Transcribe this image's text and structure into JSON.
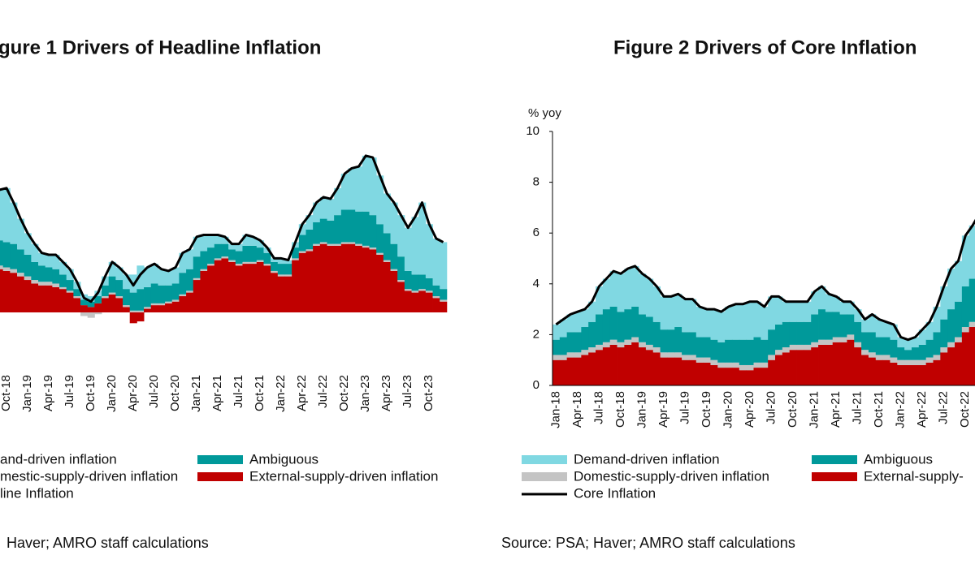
{
  "chart_data": [
    {
      "type": "bar",
      "stacked": true,
      "title": "gure 1 Drivers of Headline Inflation",
      "source": "Haver; AMRO staff calculations",
      "ylim": [
        -2,
        10
      ],
      "categories": [
        null,
        "Oct-18",
        null,
        null,
        "Jan-19",
        null,
        null,
        "Apr-19",
        null,
        null,
        "Jul-19",
        null,
        null,
        "Oct-19",
        null,
        null,
        "Jan-20",
        null,
        null,
        "Apr-20",
        null,
        null,
        "Jul-20",
        null,
        null,
        "Oct-20",
        null,
        null,
        "Jan-21",
        null,
        null,
        "Apr-21",
        null,
        null,
        "Jul-21",
        null,
        null,
        "Oct-21",
        null,
        null,
        "Jan-22",
        null,
        null,
        "Apr-22",
        null,
        null,
        "Jul-22",
        null,
        null,
        "Oct-22",
        null,
        null,
        "Jan-23",
        null,
        null,
        "Apr-23",
        null,
        null,
        "Jul-23",
        null,
        null,
        "Oct-23",
        null,
        null
      ],
      "series": [
        {
          "name": "and-driven inflation",
          "color": "#80d8e2",
          "values": [
            2.8,
            3.0,
            2.3,
            1.7,
            1.2,
            1.0,
            0.7,
            0.7,
            0.8,
            0.7,
            0.6,
            0.4,
            0.3,
            0.3,
            0.3,
            0.5,
            0.8,
            0.7,
            0.8,
            1.0,
            1.3,
            1.1,
            1.1,
            0.9,
            0.8,
            0.9,
            1.1,
            1.1,
            1.1,
            0.9,
            0.7,
            0.5,
            0.4,
            0.3,
            0.4,
            0.6,
            0.5,
            0.4,
            0.3,
            0.2,
            0.3,
            0.2,
            0.3,
            0.6,
            0.8,
            1.1,
            1.2,
            1.2,
            1.5,
            2.0,
            2.3,
            2.5,
            3.1,
            3.2,
            2.7,
            2.2,
            2.3,
            2.3,
            2.4,
            3.2,
            4.0,
            3.0,
            2.6,
            2.6
          ]
        },
        {
          "name": "Ambiguous",
          "color": "#00999a",
          "values": [
            1.4,
            1.4,
            1.4,
            1.3,
            1.2,
            1.0,
            0.9,
            0.8,
            0.8,
            0.7,
            0.6,
            0.4,
            0.3,
            0.3,
            0.4,
            0.6,
            0.9,
            0.9,
            0.9,
            1.0,
            1.2,
            1.1,
            1.1,
            1.0,
            0.9,
            0.9,
            1.2,
            1.2,
            1.2,
            1.0,
            0.9,
            0.8,
            0.7,
            0.6,
            0.7,
            0.9,
            0.9,
            0.7,
            0.6,
            0.5,
            0.6,
            0.6,
            0.6,
            0.9,
            1.1,
            1.2,
            1.3,
            1.3,
            1.6,
            1.8,
            1.8,
            1.8,
            1.9,
            1.8,
            1.6,
            1.5,
            1.4,
            1.3,
            1.0,
            0.9,
            0.8,
            0.7,
            0.6,
            0.6
          ]
        },
        {
          "name": "mestic-supply-driven inflation",
          "color": "#c4c4c4",
          "values": [
            0.2,
            0.2,
            0.2,
            0.2,
            0.2,
            0.2,
            0.2,
            0.2,
            0.2,
            0.1,
            0.1,
            0.1,
            -0.2,
            -0.3,
            -0.1,
            0.1,
            0.1,
            0.1,
            0.1,
            0.1,
            0.1,
            0.1,
            0.1,
            0.1,
            0.1,
            0.1,
            0.1,
            0.1,
            0.1,
            0.1,
            0.1,
            0.1,
            0.1,
            0.1,
            0.1,
            0.1,
            0.1,
            0.1,
            0.1,
            0.1,
            0.1,
            0.1,
            0.1,
            0.1,
            0.1,
            0.1,
            0.1,
            0.1,
            0.1,
            0.1,
            0.1,
            0.1,
            0.1,
            0.1,
            0.1,
            0.1,
            0.1,
            0.1,
            0.1,
            0.1,
            0.1,
            0.1,
            0.1,
            0.1
          ]
        },
        {
          "name": "External-supply-driven inflation",
          "color": "#c00000",
          "values": [
            2.4,
            2.3,
            2.2,
            2.0,
            1.8,
            1.6,
            1.5,
            1.5,
            1.4,
            1.3,
            1.1,
            0.8,
            0.4,
            0.3,
            0.5,
            0.8,
            1.0,
            0.8,
            0.3,
            -0.6,
            -0.5,
            0.2,
            0.4,
            0.4,
            0.5,
            0.6,
            0.9,
            1.1,
            1.8,
            2.3,
            2.6,
            2.9,
            3.0,
            2.8,
            2.6,
            2.7,
            2.7,
            2.8,
            2.6,
            2.2,
            2.0,
            2.0,
            2.9,
            3.3,
            3.4,
            3.7,
            3.8,
            3.7,
            3.7,
            3.8,
            3.8,
            3.7,
            3.6,
            3.5,
            3.2,
            2.8,
            2.3,
            1.7,
            1.2,
            1.1,
            1.2,
            1.1,
            0.8,
            0.6
          ]
        },
        {
          "name": "line Inflation",
          "type": "line",
          "color": "#000000",
          "values": [
            6.8,
            6.9,
            6.1,
            5.2,
            4.4,
            3.8,
            3.3,
            3.2,
            3.2,
            2.8,
            2.4,
            1.7,
            0.8,
            0.6,
            1.1,
            2.0,
            2.8,
            2.5,
            2.1,
            1.5,
            2.1,
            2.5,
            2.7,
            2.4,
            2.3,
            2.5,
            3.3,
            3.5,
            4.2,
            4.3,
            4.3,
            4.3,
            4.2,
            3.8,
            3.8,
            4.3,
            4.2,
            4.0,
            3.6,
            3.0,
            3.0,
            2.9,
            3.9,
            4.9,
            5.4,
            6.1,
            6.4,
            6.3,
            6.9,
            7.7,
            8.0,
            8.1,
            8.7,
            8.6,
            7.6,
            6.6,
            6.1,
            5.4,
            4.7,
            5.3,
            6.1,
            4.9,
            4.1,
            3.9
          ]
        }
      ]
    },
    {
      "type": "bar",
      "stacked": true,
      "title": "Figure 2 Drivers of Core Inflation",
      "source": "Source: PSA; Haver; AMRO staff calculations",
      "ylabel": "% yoy",
      "ylim": [
        0,
        10
      ],
      "yticks": [
        0,
        2,
        4,
        6,
        8,
        10
      ],
      "categories": [
        "Jan-18",
        null,
        null,
        "Apr-18",
        null,
        null,
        "Jul-18",
        null,
        null,
        "Oct-18",
        null,
        null,
        "Jan-19",
        null,
        null,
        "Apr-19",
        null,
        null,
        "Jul-19",
        null,
        null,
        "Oct-19",
        null,
        null,
        "Jan-20",
        null,
        null,
        "Apr-20",
        null,
        null,
        "Jul-20",
        null,
        null,
        "Oct-20",
        null,
        null,
        "Jan-21",
        null,
        null,
        "Apr-21",
        null,
        null,
        "Jul-21",
        null,
        null,
        "Oct-21",
        null,
        null,
        "Jan-22",
        null,
        null,
        "Apr-22",
        null,
        null,
        "Jul-22",
        null,
        null,
        "Oct-22",
        null,
        null
      ],
      "series": [
        {
          "name": "Demand-driven inflation",
          "color": "#80d8e2",
          "values": [
            0.6,
            0.7,
            0.7,
            0.8,
            0.7,
            0.8,
            1.1,
            1.2,
            1.4,
            1.5,
            1.6,
            1.6,
            1.6,
            1.5,
            1.4,
            1.3,
            1.3,
            1.3,
            1.3,
            1.3,
            1.2,
            1.1,
            1.2,
            1.2,
            1.3,
            1.4,
            1.4,
            1.5,
            1.4,
            1.3,
            1.3,
            1.1,
            0.8,
            0.8,
            0.8,
            0.8,
            0.9,
            0.9,
            0.7,
            0.6,
            0.5,
            0.5,
            0.5,
            0.5,
            0.7,
            0.7,
            0.6,
            0.6,
            0.4,
            0.4,
            0.4,
            0.6,
            0.7,
            1.0,
            1.3,
            1.6,
            1.6,
            2.0,
            2.1,
            2.3
          ]
        },
        {
          "name": "Ambiguous",
          "color": "#00999a",
          "values": [
            0.6,
            0.7,
            0.8,
            0.8,
            0.9,
            1.0,
            1.2,
            1.3,
            1.3,
            1.2,
            1.2,
            1.2,
            1.1,
            1.1,
            1.0,
            0.9,
            0.9,
            1.0,
            0.9,
            0.9,
            0.8,
            0.8,
            0.8,
            0.8,
            0.9,
            0.9,
            1.0,
            1.0,
            1.0,
            0.9,
            1.0,
            1.0,
            1.0,
            0.9,
            0.9,
            0.9,
            1.1,
            1.2,
            1.1,
            1.0,
            0.9,
            0.8,
            0.8,
            0.7,
            0.8,
            0.7,
            0.7,
            0.7,
            0.5,
            0.4,
            0.5,
            0.6,
            0.7,
            0.9,
            1.1,
            1.3,
            1.4,
            1.6,
            1.7,
            1.8
          ]
        },
        {
          "name": "Domestic-supply-driven inflation",
          "color": "#c4c4c4",
          "values": [
            0.2,
            0.2,
            0.2,
            0.2,
            0.2,
            0.2,
            0.2,
            0.2,
            0.2,
            0.2,
            0.2,
            0.2,
            0.2,
            0.2,
            0.2,
            0.2,
            0.2,
            0.2,
            0.2,
            0.2,
            0.2,
            0.2,
            0.2,
            0.2,
            0.2,
            0.2,
            0.2,
            0.2,
            0.2,
            0.2,
            0.2,
            0.2,
            0.2,
            0.2,
            0.2,
            0.2,
            0.2,
            0.2,
            0.2,
            0.2,
            0.2,
            0.2,
            0.2,
            0.2,
            0.2,
            0.2,
            0.2,
            0.2,
            0.2,
            0.2,
            0.2,
            0.2,
            0.2,
            0.2,
            0.2,
            0.2,
            0.2,
            0.2,
            0.2,
            0.2
          ]
        },
        {
          "name": "External-supply-",
          "color": "#c00000",
          "values": [
            1.0,
            1.0,
            1.1,
            1.1,
            1.2,
            1.3,
            1.4,
            1.5,
            1.6,
            1.5,
            1.6,
            1.7,
            1.5,
            1.4,
            1.3,
            1.1,
            1.1,
            1.1,
            1.0,
            1.0,
            0.9,
            0.9,
            0.8,
            0.7,
            0.7,
            0.7,
            0.6,
            0.6,
            0.7,
            0.7,
            1.0,
            1.2,
            1.3,
            1.4,
            1.4,
            1.4,
            1.5,
            1.6,
            1.6,
            1.7,
            1.7,
            1.8,
            1.5,
            1.2,
            1.1,
            1.0,
            1.0,
            0.9,
            0.8,
            0.8,
            0.8,
            0.8,
            0.9,
            1.0,
            1.3,
            1.5,
            1.7,
            2.1,
            2.3,
            2.5
          ]
        },
        {
          "name": "Core Inflation",
          "type": "line",
          "color": "#000000",
          "values": [
            2.4,
            2.6,
            2.8,
            2.9,
            3.0,
            3.3,
            3.9,
            4.2,
            4.5,
            4.4,
            4.6,
            4.7,
            4.4,
            4.2,
            3.9,
            3.5,
            3.5,
            3.6,
            3.4,
            3.4,
            3.1,
            3.0,
            3.0,
            2.9,
            3.1,
            3.2,
            3.2,
            3.3,
            3.3,
            3.1,
            3.5,
            3.5,
            3.3,
            3.3,
            3.3,
            3.3,
            3.7,
            3.9,
            3.6,
            3.5,
            3.3,
            3.3,
            3.0,
            2.6,
            2.8,
            2.6,
            2.5,
            2.4,
            1.9,
            1.8,
            1.9,
            2.2,
            2.5,
            3.1,
            3.9,
            4.6,
            4.9,
            5.9,
            6.3,
            6.8
          ]
        }
      ]
    }
  ]
}
